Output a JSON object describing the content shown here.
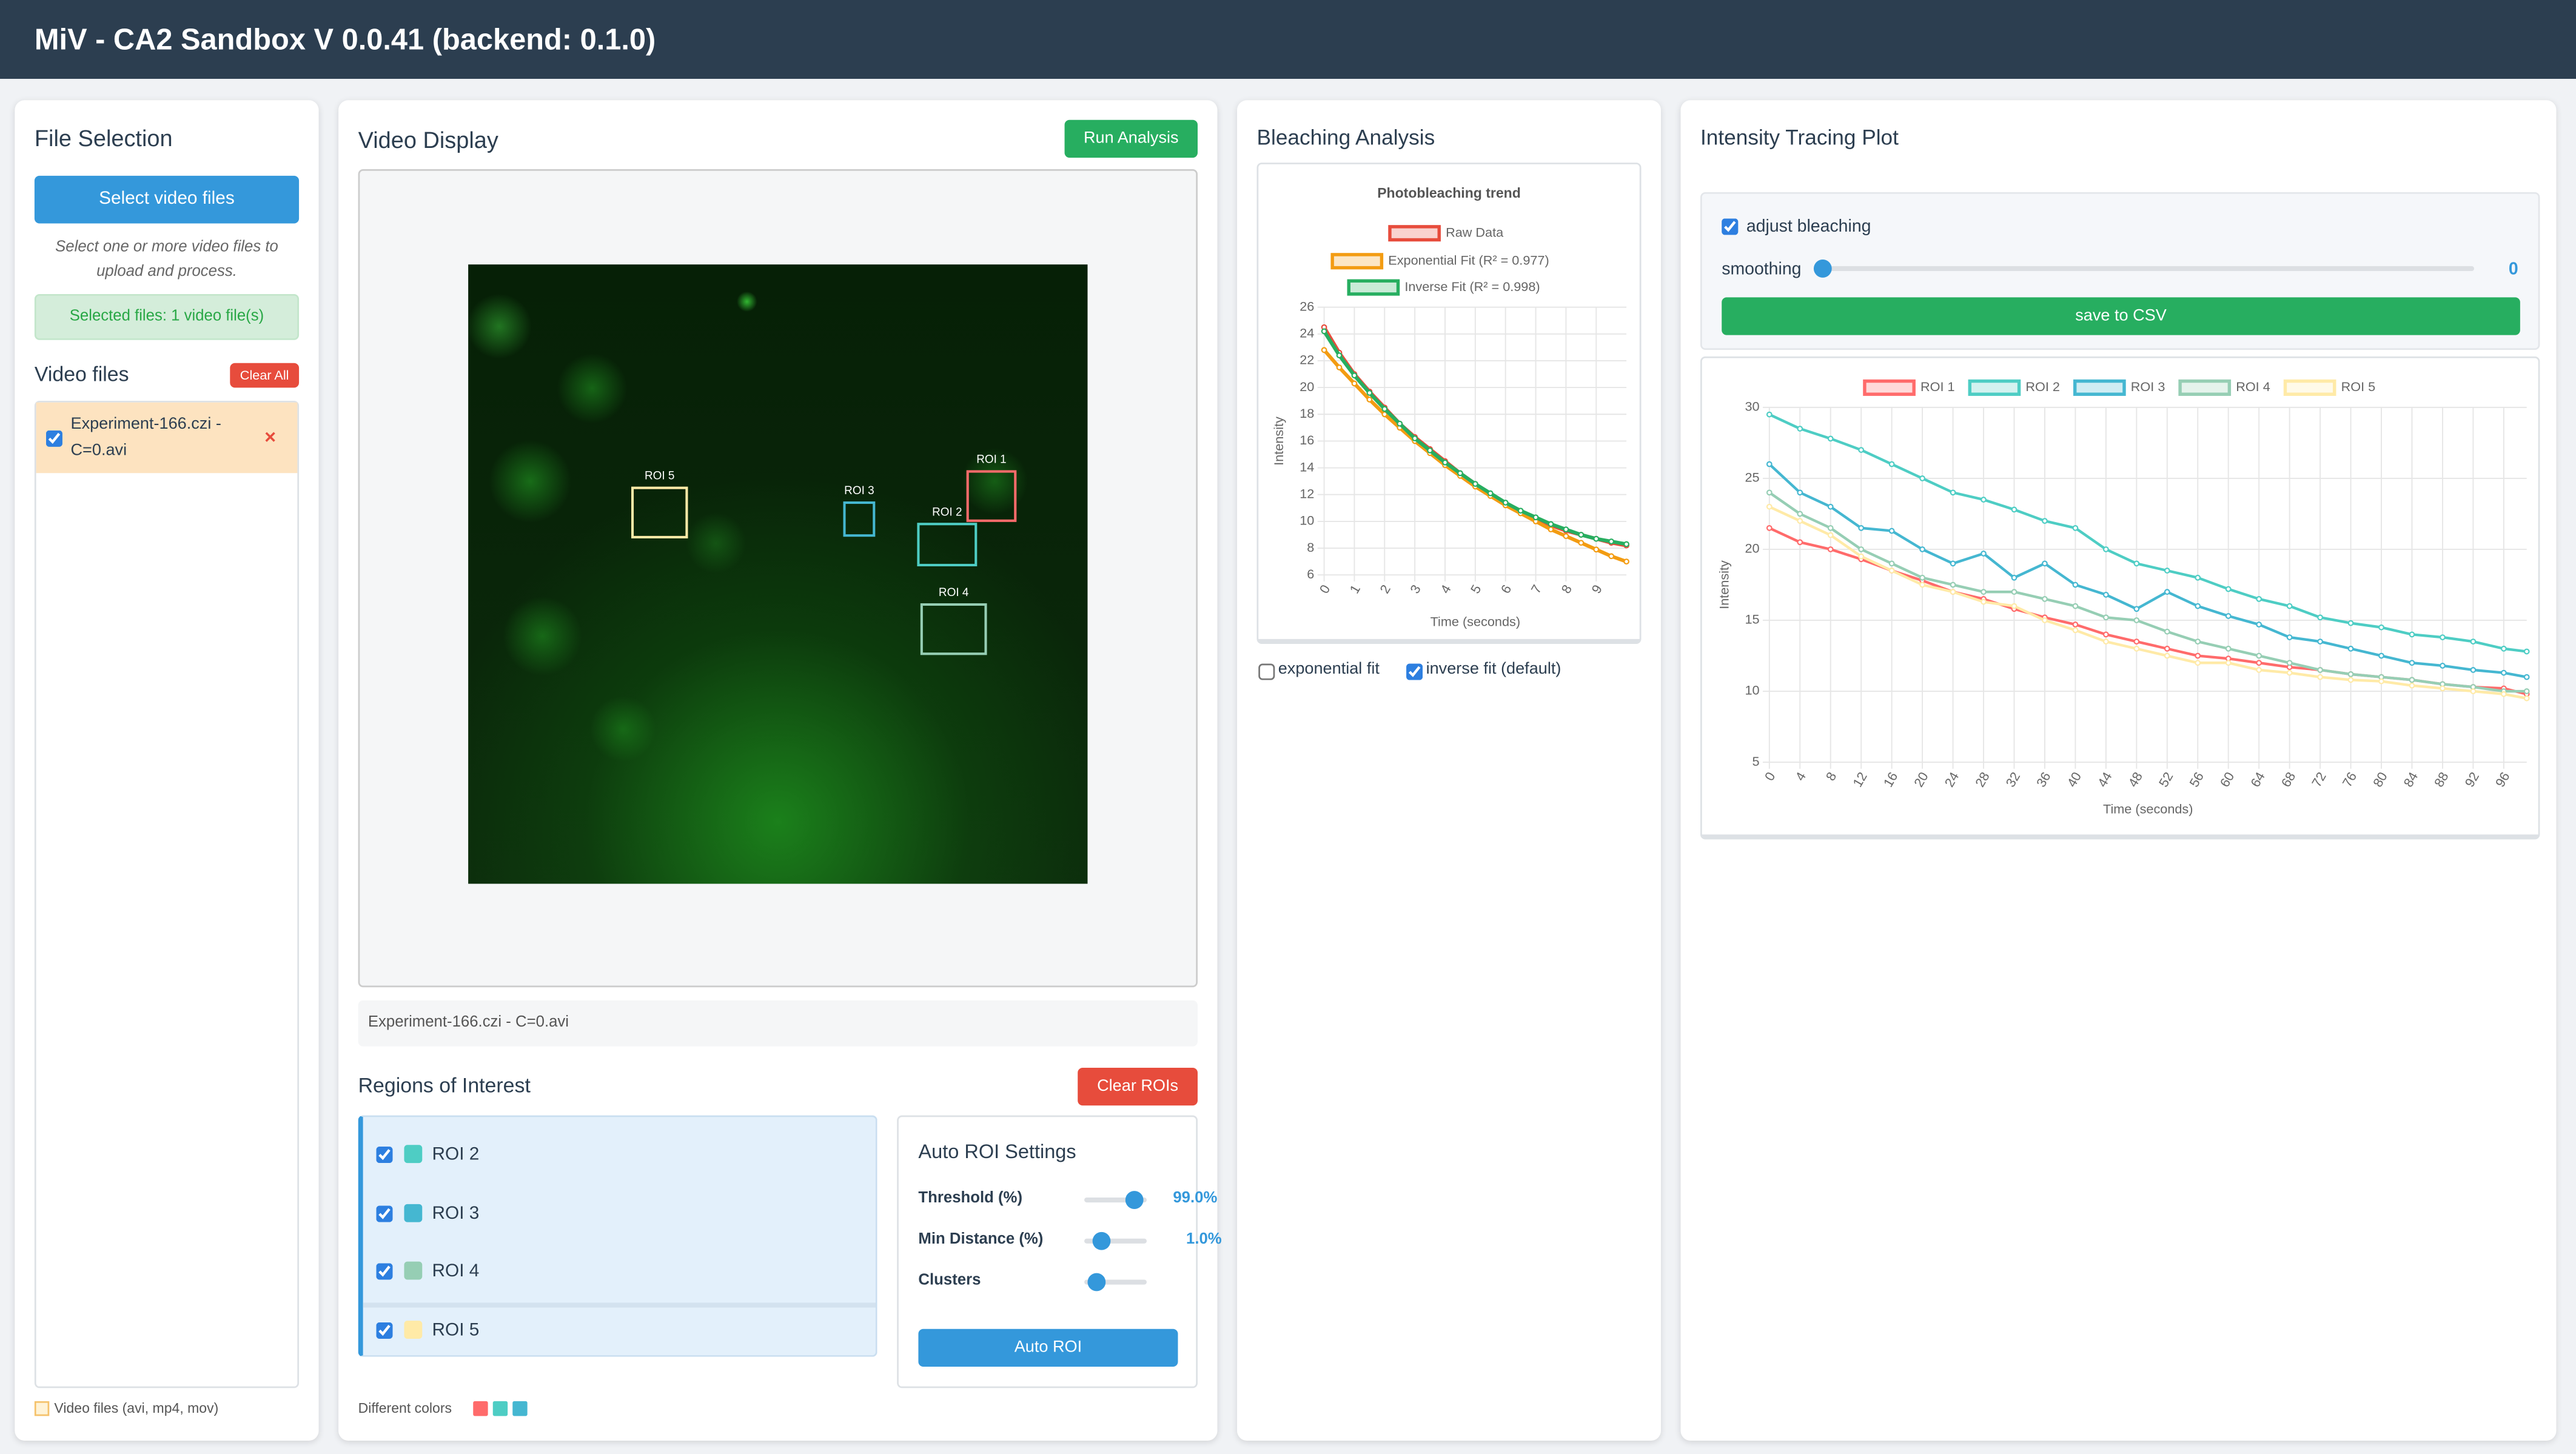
{
  "header": {
    "title": "MiV - CA2 Sandbox V 0.0.41 (backend: 0.1.0)"
  },
  "file_selection": {
    "title": "File Selection",
    "select_button": "Select video files",
    "hint": "Select one or more video files to upload and process.",
    "selected": "Selected files: 1 video file(s)",
    "video_files_label": "Video files",
    "clear_all": "Clear All",
    "files": [
      {
        "name": "Experiment-166.czi - C=0.avi",
        "checked": true
      }
    ],
    "footer": "Video files (avi, mp4, mov)"
  },
  "video_display": {
    "title": "Video Display",
    "run_button": "Run Analysis",
    "rois": [
      {
        "label": "ROI 1",
        "color": "#ff6b6b"
      },
      {
        "label": "ROI 2",
        "color": "#4ecdc4"
      },
      {
        "label": "ROI 3",
        "color": "#45b7d1"
      },
      {
        "label": "ROI 4",
        "color": "#96ceb4"
      },
      {
        "label": "ROI 5",
        "color": "#ffeaa7"
      }
    ],
    "filename": "Experiment-166.czi - C=0.avi"
  },
  "regions": {
    "title": "Regions of Interest",
    "clear_button": "Clear ROIs",
    "items": [
      {
        "label": "ROI 2",
        "color": "#4ecdc4",
        "checked": true
      },
      {
        "label": "ROI 3",
        "color": "#45b7d1",
        "checked": true
      },
      {
        "label": "ROI 4",
        "color": "#96ceb4",
        "checked": true
      },
      {
        "label": "ROI 5",
        "color": "#ffeaa7",
        "checked": true
      }
    ],
    "footer": "Different colors",
    "footer_colors": [
      "#ff6b6b",
      "#4ecdc4",
      "#45b7d1"
    ]
  },
  "auto_roi": {
    "title": "Auto ROI Settings",
    "threshold_label": "Threshold (%)",
    "threshold_value": "99.0%",
    "min_distance_label": "Min Distance (%)",
    "min_distance_value": "1.0%",
    "clusters_label": "Clusters",
    "button": "Auto ROI"
  },
  "bleaching": {
    "title": "Bleaching Analysis",
    "exp_fit": {
      "label": "exponential fit",
      "checked": false
    },
    "inverse_fit": {
      "label": "inverse fit (default)",
      "checked": true
    },
    "chart": {
      "type": "line",
      "title": "Photobleaching trend",
      "x_label": "Time (seconds)",
      "y_label": "Intensity",
      "x": [
        0,
        0.5,
        1,
        1.5,
        2,
        2.5,
        3,
        3.5,
        4,
        4.5,
        5,
        5.5,
        6,
        6.5,
        7,
        7.5,
        8,
        8.5,
        9,
        9.5,
        10
      ],
      "xlim": [
        0,
        10
      ],
      "xticks": [
        0,
        1,
        2,
        3,
        4,
        5,
        6,
        7,
        8,
        9
      ],
      "ylim": [
        6,
        26
      ],
      "yticks": [
        6,
        8,
        10,
        12,
        14,
        16,
        18,
        20,
        22,
        24,
        26
      ],
      "grid": true,
      "series": [
        {
          "name": "Raw Data",
          "color": "#e74c3c",
          "values": [
            24.5,
            22.6,
            21.0,
            19.7,
            18.5,
            17.3,
            16.3,
            15.4,
            14.5,
            13.6,
            12.8,
            12.0,
            11.3,
            10.7,
            10.2,
            9.7,
            9.3,
            9.0,
            8.7,
            8.4,
            8.2
          ]
        },
        {
          "name": "Exponential Fit (R² = 0.977)",
          "color": "#f39c12",
          "values": [
            22.8,
            21.5,
            20.3,
            19.1,
            18.0,
            17.0,
            16.0,
            15.1,
            14.2,
            13.4,
            12.6,
            11.9,
            11.2,
            10.6,
            10.0,
            9.4,
            8.9,
            8.4,
            7.9,
            7.4,
            7.0
          ]
        },
        {
          "name": "Inverse Fit (R² = 0.998)",
          "color": "#27ae60",
          "values": [
            24.2,
            22.4,
            20.9,
            19.6,
            18.4,
            17.3,
            16.2,
            15.3,
            14.4,
            13.6,
            12.8,
            12.1,
            11.4,
            10.8,
            10.3,
            9.8,
            9.4,
            9.0,
            8.7,
            8.5,
            8.3
          ]
        }
      ]
    }
  },
  "intensity": {
    "title": "Intensity Tracing Plot",
    "adjust": {
      "label": "adjust bleaching",
      "checked": true
    },
    "smoothing_label": "smoothing",
    "smoothing_value": 0,
    "save_button": "save to CSV",
    "chart": {
      "type": "line",
      "x_label": "Time (seconds)",
      "y_label": "Intensity",
      "x": [
        0,
        4,
        8,
        12,
        16,
        20,
        24,
        28,
        32,
        36,
        40,
        44,
        48,
        52,
        56,
        60,
        64,
        68,
        72,
        76,
        80,
        84,
        88,
        92,
        96,
        99
      ],
      "xlim": [
        0,
        99
      ],
      "xticks": [
        0,
        4,
        8,
        12,
        16,
        20,
        24,
        28,
        32,
        36,
        40,
        44,
        48,
        52,
        56,
        60,
        64,
        68,
        72,
        76,
        80,
        84,
        88,
        92,
        96
      ],
      "ylim": [
        5,
        30
      ],
      "yticks": [
        5,
        10,
        15,
        20,
        25,
        30
      ],
      "grid": true,
      "series": [
        {
          "name": "ROI 1",
          "color": "#ff6b6b",
          "values": [
            21.5,
            20.5,
            20.0,
            19.3,
            18.5,
            17.8,
            17.0,
            16.5,
            15.8,
            15.2,
            14.7,
            14.0,
            13.5,
            13.0,
            12.5,
            12.3,
            12.0,
            11.7,
            11.5,
            11.2,
            11.0,
            10.8,
            10.5,
            10.3,
            10.2,
            9.8
          ]
        },
        {
          "name": "ROI 2",
          "color": "#4ecdc4",
          "values": [
            29.5,
            28.5,
            27.8,
            27.0,
            26.0,
            25.0,
            24.0,
            23.5,
            22.8,
            22.0,
            21.5,
            20.0,
            19.0,
            18.5,
            18.0,
            17.2,
            16.5,
            16.0,
            15.2,
            14.8,
            14.5,
            14.0,
            13.8,
            13.5,
            13.0,
            12.8
          ]
        },
        {
          "name": "ROI 3",
          "color": "#45b7d1",
          "values": [
            26.0,
            24.0,
            23.0,
            21.5,
            21.3,
            20.0,
            19.0,
            19.7,
            18.0,
            19.0,
            17.5,
            16.8,
            15.8,
            17.0,
            16.0,
            15.3,
            14.7,
            13.8,
            13.5,
            13.0,
            12.5,
            12.0,
            11.8,
            11.5,
            11.3,
            11.0
          ]
        },
        {
          "name": "ROI 4",
          "color": "#96ceb4",
          "values": [
            24.0,
            22.5,
            21.5,
            20.0,
            19.0,
            18.0,
            17.5,
            17.0,
            17.0,
            16.5,
            16.0,
            15.2,
            15.0,
            14.2,
            13.5,
            13.0,
            12.5,
            12.0,
            11.5,
            11.2,
            11.0,
            10.8,
            10.5,
            10.3,
            10.0,
            10.0
          ]
        },
        {
          "name": "ROI 5",
          "color": "#ffeaa7",
          "values": [
            23.0,
            22.0,
            21.0,
            19.5,
            18.5,
            17.5,
            17.0,
            16.3,
            16.0,
            15.0,
            14.3,
            13.5,
            13.0,
            12.5,
            12.0,
            12.0,
            11.5,
            11.3,
            11.0,
            10.8,
            10.7,
            10.4,
            10.2,
            10.0,
            9.8,
            9.5
          ]
        }
      ]
    }
  }
}
